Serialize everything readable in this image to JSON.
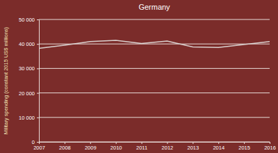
{
  "chart_data": {
    "type": "line",
    "title": "Germany",
    "ylabel": "Military spending (constant 2015 US$ millions)",
    "x": [
      2007,
      2008,
      2009,
      2010,
      2011,
      2012,
      2013,
      2014,
      2015,
      2016
    ],
    "values": [
      38200,
      39500,
      41000,
      41500,
      40200,
      41200,
      38800,
      38600,
      39800,
      41000
    ],
    "color": "#d9d0ce",
    "xlim": [
      2007,
      2016
    ],
    "xticks": [
      2007,
      2008,
      2009,
      2010,
      2011,
      2012,
      2013,
      2014,
      2015,
      2016
    ],
    "ylim": [
      0,
      50000
    ],
    "yticks": [
      0,
      {
        "value": 10000,
        "label": "10 000"
      },
      {
        "value": 20000,
        "label": "20 000"
      },
      {
        "value": 30000,
        "label": "30 000"
      },
      {
        "value": 40000,
        "label": "40 000"
      },
      {
        "value": 50000,
        "label": "50 000"
      }
    ],
    "grid": true
  }
}
